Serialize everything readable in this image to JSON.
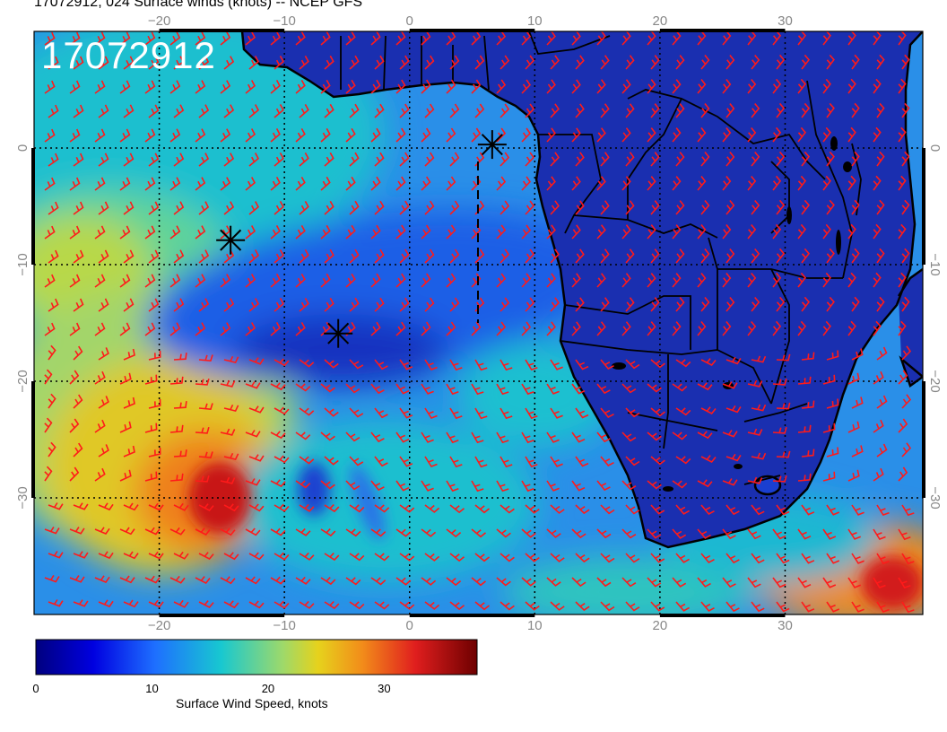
{
  "header": {
    "title": "17072912, 024 Surface winds (knots) -- NCEP GFS",
    "stamp": "17072912"
  },
  "map": {
    "lon_range": [
      -30,
      41
    ],
    "lat_range": [
      -40,
      10
    ],
    "lon_ticks": [
      -20,
      -10,
      0,
      10,
      20,
      30
    ],
    "lat_ticks": [
      0,
      -10,
      -20,
      -30
    ],
    "lon_tick_labels": [
      "−20",
      "−10",
      "0",
      "10",
      "20",
      "30"
    ],
    "lat_tick_labels": [
      "0",
      "−10",
      "−20",
      "−30"
    ],
    "land_color": "#1a2fb0",
    "ocean_color": "#18c8d0",
    "barb_color": "#ff1a1a"
  },
  "markers": [
    {
      "type": "asterisk",
      "lon": 6.6,
      "lat": 0.3
    },
    {
      "type": "asterisk",
      "lon": -14.3,
      "lat": -7.9
    },
    {
      "type": "asterisk",
      "lon": -5.7,
      "lat": -15.9
    }
  ],
  "colorbar": {
    "label": "Surface Wind Speed, knots",
    "range": [
      0,
      38
    ],
    "ticks": [
      0,
      10,
      20,
      30
    ],
    "tick_labels": [
      "0",
      "10",
      "20",
      "30"
    ],
    "colors": [
      "#00007f",
      "#0000e0",
      "#1e6fff",
      "#18c8d0",
      "#9ed96a",
      "#e6d21c",
      "#f28c1a",
      "#e01e1e",
      "#6e0000"
    ]
  }
}
